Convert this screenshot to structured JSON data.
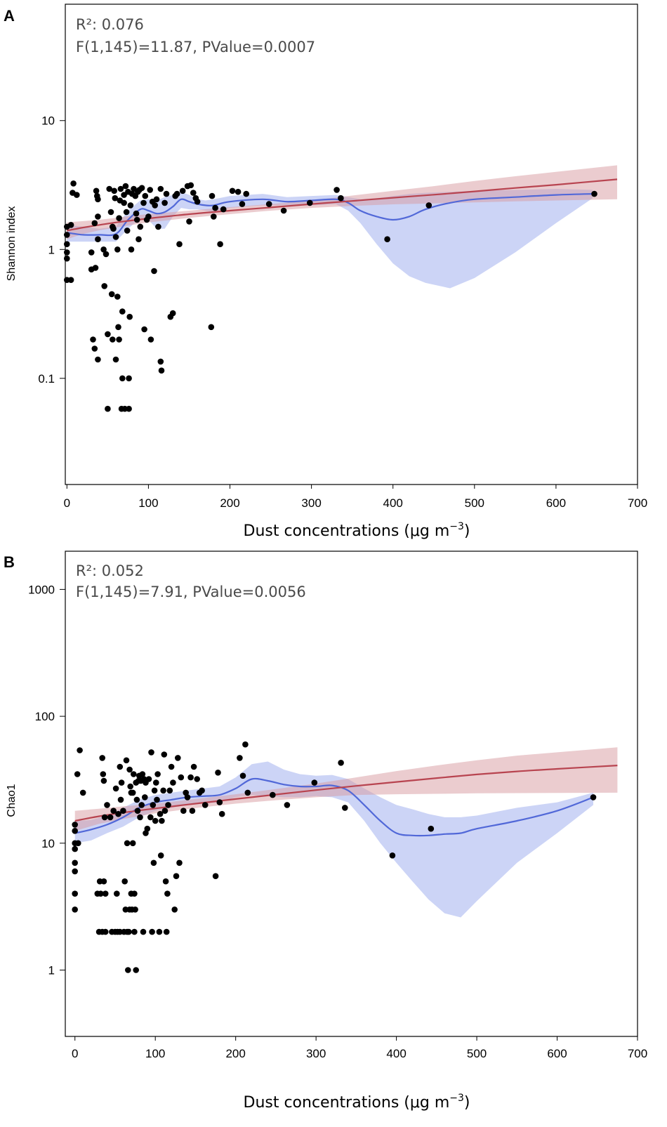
{
  "chart_data": [
    {
      "panel": "A",
      "type": "scatter",
      "ylabel": "Shannon index",
      "xlabel": "Dust concentrations (μg m",
      "xlabel_sup": "−3",
      "annotation": [
        "R²: 0.076",
        "F(1,145)=11.87, PValue=0.0007"
      ],
      "yscale": "log",
      "xlim": [
        -2,
        700
      ],
      "ylim": [
        0.015,
        80
      ],
      "xticks": [
        0,
        100,
        200,
        300,
        400,
        500,
        600,
        700
      ],
      "yticks": [
        0.1,
        1,
        10
      ],
      "ytick_labels": [
        "0.1",
        "1",
        "10"
      ],
      "points": [
        [
          0,
          1.5
        ],
        [
          0,
          1.3
        ],
        [
          0,
          1.1
        ],
        [
          0,
          0.95
        ],
        [
          0,
          0.85
        ],
        [
          0,
          0.58
        ],
        [
          5,
          1.55
        ],
        [
          5,
          0.58
        ],
        [
          7,
          2.75
        ],
        [
          8,
          3.25
        ],
        [
          12,
          2.65
        ],
        [
          30,
          0.95
        ],
        [
          30,
          0.7
        ],
        [
          32,
          0.2
        ],
        [
          34,
          1.6
        ],
        [
          34,
          0.17
        ],
        [
          35,
          0.72
        ],
        [
          36,
          2.85
        ],
        [
          37,
          2.6
        ],
        [
          38,
          2.45
        ],
        [
          38,
          1.8
        ],
        [
          38,
          1.2
        ],
        [
          38,
          0.14
        ],
        [
          45,
          1.0
        ],
        [
          46,
          0.52
        ],
        [
          48,
          0.92
        ],
        [
          50,
          0.22
        ],
        [
          50,
          0.058
        ],
        [
          52,
          2.95
        ],
        [
          54,
          1.95
        ],
        [
          55,
          0.45
        ],
        [
          56,
          1.5
        ],
        [
          56,
          0.2
        ],
        [
          57,
          1.45
        ],
        [
          58,
          2.85
        ],
        [
          59,
          2.5
        ],
        [
          60,
          1.25
        ],
        [
          60,
          0.14
        ],
        [
          62,
          1.0
        ],
        [
          62,
          0.43
        ],
        [
          63,
          0.25
        ],
        [
          64,
          0.2
        ],
        [
          64,
          1.75
        ],
        [
          65,
          2.4
        ],
        [
          66,
          2.95
        ],
        [
          67,
          0.058
        ],
        [
          68,
          0.33
        ],
        [
          68,
          0.1
        ],
        [
          70,
          2.65
        ],
        [
          70,
          2.3
        ],
        [
          71,
          0.058
        ],
        [
          72,
          3.1
        ],
        [
          73,
          1.95
        ],
        [
          74,
          1.4
        ],
        [
          75,
          2.8
        ],
        [
          76,
          0.1
        ],
        [
          76,
          0.058
        ],
        [
          77,
          0.3
        ],
        [
          78,
          2.2
        ],
        [
          79,
          1.0
        ],
        [
          80,
          2.7
        ],
        [
          82,
          2.95
        ],
        [
          84,
          2.6
        ],
        [
          85,
          1.9
        ],
        [
          86,
          1.7
        ],
        [
          87,
          2.8
        ],
        [
          88,
          1.2
        ],
        [
          89,
          2.9
        ],
        [
          90,
          1.5
        ],
        [
          92,
          3.0
        ],
        [
          94,
          2.3
        ],
        [
          95,
          0.24
        ],
        [
          96,
          2.6
        ],
        [
          98,
          1.7
        ],
        [
          100,
          1.8
        ],
        [
          102,
          2.9
        ],
        [
          103,
          0.2
        ],
        [
          105,
          2.35
        ],
        [
          107,
          0.68
        ],
        [
          108,
          2.2
        ],
        [
          110,
          2.45
        ],
        [
          112,
          1.5
        ],
        [
          115,
          2.95
        ],
        [
          115,
          0.135
        ],
        [
          116,
          0.115
        ],
        [
          120,
          2.3
        ],
        [
          122,
          2.7
        ],
        [
          127,
          0.3
        ],
        [
          130,
          0.32
        ],
        [
          133,
          2.6
        ],
        [
          135,
          2.7
        ],
        [
          138,
          1.1
        ],
        [
          142,
          2.85
        ],
        [
          148,
          3.1
        ],
        [
          150,
          1.65
        ],
        [
          152,
          3.15
        ],
        [
          155,
          2.75
        ],
        [
          158,
          2.5
        ],
        [
          160,
          2.35
        ],
        [
          177,
          0.25
        ],
        [
          178,
          2.6
        ],
        [
          180,
          1.8
        ],
        [
          182,
          2.1
        ],
        [
          188,
          1.1
        ],
        [
          192,
          2.05
        ],
        [
          203,
          2.85
        ],
        [
          210,
          2.8
        ],
        [
          215,
          2.25
        ],
        [
          220,
          2.7
        ],
        [
          248,
          2.25
        ],
        [
          266,
          2.0
        ],
        [
          298,
          2.3
        ],
        [
          331,
          2.9
        ],
        [
          336,
          2.5
        ],
        [
          393,
          1.2
        ],
        [
          444,
          2.2
        ],
        [
          647,
          2.7
        ]
      ],
      "smooth_fit": {
        "x": [
          0,
          20,
          40,
          60,
          75,
          90,
          100,
          110,
          120,
          130,
          140,
          150,
          160,
          170,
          180,
          200,
          240,
          270,
          300,
          330,
          345,
          360,
          380,
          400,
          420,
          440,
          470,
          500,
          550,
          600,
          645
        ],
        "y": [
          1.35,
          1.3,
          1.3,
          1.32,
          1.7,
          2.05,
          2.0,
          1.9,
          1.95,
          2.15,
          2.45,
          2.35,
          2.25,
          2.2,
          2.2,
          2.35,
          2.45,
          2.35,
          2.4,
          2.45,
          2.3,
          2.0,
          1.8,
          1.7,
          1.8,
          2.05,
          2.3,
          2.45,
          2.55,
          2.65,
          2.7
        ],
        "lower": [
          1.15,
          1.15,
          1.15,
          1.15,
          1.45,
          1.75,
          1.7,
          1.45,
          1.45,
          1.8,
          2.1,
          2.05,
          2.05,
          2.0,
          1.95,
          2.1,
          2.2,
          2.2,
          2.2,
          2.25,
          2.0,
          1.6,
          1.1,
          0.78,
          0.62,
          0.55,
          0.5,
          0.6,
          0.95,
          1.6,
          2.5
        ],
        "upper": [
          1.55,
          1.5,
          1.45,
          1.5,
          2.0,
          2.4,
          2.45,
          2.4,
          2.55,
          2.65,
          2.8,
          2.65,
          2.45,
          2.4,
          2.45,
          2.6,
          2.7,
          2.55,
          2.6,
          2.65,
          2.55,
          2.45,
          2.5,
          2.6,
          2.7,
          2.75,
          2.8,
          2.85,
          2.9,
          2.95,
          2.9
        ]
      },
      "linear_fit": {
        "x": [
          0,
          10,
          20,
          40,
          60,
          80,
          100,
          150,
          200,
          250,
          300,
          350,
          400,
          450,
          500,
          550,
          600,
          675
        ],
        "y": [
          1.4,
          1.44,
          1.48,
          1.55,
          1.62,
          1.68,
          1.74,
          1.88,
          2.0,
          2.12,
          2.25,
          2.38,
          2.52,
          2.66,
          2.82,
          3.0,
          3.18,
          3.5
        ],
        "lower": [
          1.2,
          1.26,
          1.32,
          1.41,
          1.48,
          1.55,
          1.62,
          1.76,
          1.88,
          2.0,
          2.1,
          2.18,
          2.24,
          2.28,
          2.32,
          2.36,
          2.4,
          2.45
        ],
        "upper": [
          1.62,
          1.64,
          1.66,
          1.7,
          1.76,
          1.83,
          1.88,
          2.0,
          2.13,
          2.25,
          2.4,
          2.62,
          2.85,
          3.1,
          3.4,
          3.7,
          4.0,
          4.5
        ]
      },
      "colors": {
        "points": "#000000",
        "smooth": "#5168d8",
        "smooth_band": "#aab8f0",
        "linear": "#b84450",
        "linear_band": "#d89a9f"
      }
    },
    {
      "panel": "B",
      "type": "scatter",
      "ylabel": "Chao1",
      "xlabel": "Dust concentrations (μg m",
      "xlabel_sup": "−3",
      "annotation": [
        "R²: 0.052",
        "F(1,145)=7.91, PValue=0.0056"
      ],
      "yscale": "log",
      "xlim": [
        -12,
        700
      ],
      "ylim": [
        0.3,
        2000
      ],
      "xticks": [
        0,
        100,
        200,
        300,
        400,
        500,
        600,
        700
      ],
      "yticks": [
        1,
        10,
        100,
        1000
      ],
      "ytick_labels": [
        "1",
        "10",
        "100",
        "1000"
      ],
      "points": [
        [
          0,
          14
        ],
        [
          0,
          12.5
        ],
        [
          0,
          10
        ],
        [
          0,
          9
        ],
        [
          0,
          7
        ],
        [
          0,
          6
        ],
        [
          0,
          4
        ],
        [
          0,
          3
        ],
        [
          3,
          35
        ],
        [
          4,
          10
        ],
        [
          6,
          54
        ],
        [
          10,
          25
        ],
        [
          28,
          4
        ],
        [
          30,
          2
        ],
        [
          31,
          5
        ],
        [
          32,
          4
        ],
        [
          34,
          2
        ],
        [
          34,
          47
        ],
        [
          35,
          35
        ],
        [
          36,
          31
        ],
        [
          36,
          5
        ],
        [
          37,
          16
        ],
        [
          38,
          4
        ],
        [
          38,
          2
        ],
        [
          40,
          20
        ],
        [
          44,
          16
        ],
        [
          46,
          2
        ],
        [
          48,
          18
        ],
        [
          50,
          2
        ],
        [
          51,
          27
        ],
        [
          52,
          4
        ],
        [
          53,
          2
        ],
        [
          54,
          17
        ],
        [
          56,
          40
        ],
        [
          56,
          2
        ],
        [
          57,
          22
        ],
        [
          58,
          30
        ],
        [
          60,
          18
        ],
        [
          61,
          2
        ],
        [
          62,
          5
        ],
        [
          63,
          3
        ],
        [
          64,
          45
        ],
        [
          65,
          10
        ],
        [
          65,
          2
        ],
        [
          66,
          1
        ],
        [
          67,
          2
        ],
        [
          68,
          3
        ],
        [
          68,
          38
        ],
        [
          69,
          28
        ],
        [
          70,
          4
        ],
        [
          70,
          25
        ],
        [
          71,
          3
        ],
        [
          72,
          25
        ],
        [
          72,
          10
        ],
        [
          73,
          35
        ],
        [
          74,
          4
        ],
        [
          74,
          2
        ],
        [
          75,
          3
        ],
        [
          76,
          1
        ],
        [
          76,
          30
        ],
        [
          77,
          22
        ],
        [
          78,
          18
        ],
        [
          79,
          31
        ],
        [
          80,
          34
        ],
        [
          81,
          16
        ],
        [
          82,
          31
        ],
        [
          83,
          20
        ],
        [
          84,
          35
        ],
        [
          85,
          2
        ],
        [
          86,
          32
        ],
        [
          87,
          23
        ],
        [
          88,
          12
        ],
        [
          88,
          30
        ],
        [
          90,
          13
        ],
        [
          92,
          32
        ],
        [
          94,
          16
        ],
        [
          95,
          52
        ],
        [
          96,
          2
        ],
        [
          97,
          20
        ],
        [
          98,
          7
        ],
        [
          99,
          26
        ],
        [
          100,
          15
        ],
        [
          101,
          30
        ],
        [
          102,
          22
        ],
        [
          103,
          35
        ],
        [
          105,
          2
        ],
        [
          106,
          17
        ],
        [
          107,
          8
        ],
        [
          108,
          15
        ],
        [
          110,
          26
        ],
        [
          111,
          50
        ],
        [
          112,
          18
        ],
        [
          113,
          5
        ],
        [
          114,
          2
        ],
        [
          115,
          4
        ],
        [
          116,
          20
        ],
        [
          118,
          26
        ],
        [
          120,
          40
        ],
        [
          122,
          30
        ],
        [
          124,
          3
        ],
        [
          126,
          5.5
        ],
        [
          128,
          47
        ],
        [
          130,
          7
        ],
        [
          132,
          33
        ],
        [
          135,
          18
        ],
        [
          138,
          25
        ],
        [
          140,
          23
        ],
        [
          144,
          33
        ],
        [
          146,
          18
        ],
        [
          148,
          40
        ],
        [
          152,
          32
        ],
        [
          155,
          25
        ],
        [
          158,
          26
        ],
        [
          162,
          20
        ],
        [
          175,
          5.5
        ],
        [
          178,
          36
        ],
        [
          180,
          21
        ],
        [
          183,
          17
        ],
        [
          205,
          47
        ],
        [
          209,
          34
        ],
        [
          212,
          60
        ],
        [
          215,
          25
        ],
        [
          246,
          24
        ],
        [
          264,
          20
        ],
        [
          298,
          30
        ],
        [
          331,
          43
        ],
        [
          336,
          19
        ],
        [
          395,
          8
        ],
        [
          443,
          13
        ],
        [
          645,
          23
        ]
      ],
      "smooth_fit": {
        "x": [
          0,
          20,
          40,
          60,
          80,
          100,
          120,
          140,
          160,
          180,
          200,
          220,
          240,
          260,
          280,
          300,
          320,
          340,
          360,
          380,
          400,
          420,
          440,
          460,
          480,
          500,
          550,
          600,
          645
        ],
        "y": [
          12,
          12.8,
          14,
          16,
          19,
          21,
          22,
          23,
          23.5,
          24,
          27,
          32,
          31,
          29,
          28,
          28,
          28.5,
          26,
          20,
          15,
          12,
          11.5,
          11.5,
          11.8,
          12,
          13,
          15,
          18,
          23
        ],
        "lower": [
          10,
          10.5,
          12,
          13.5,
          16,
          18,
          19,
          20,
          20.5,
          21,
          23,
          24,
          23.5,
          23,
          23,
          23.5,
          23,
          21,
          15,
          10,
          7,
          5,
          3.6,
          2.8,
          2.6,
          3.5,
          7,
          12,
          20
        ],
        "upper": [
          15,
          15.2,
          16.5,
          19,
          22,
          24,
          25,
          26,
          27,
          28,
          33,
          42,
          44,
          38,
          35,
          34,
          34.5,
          32,
          27,
          23,
          20,
          18.5,
          17,
          16,
          16,
          16.5,
          19,
          21,
          25
        ]
      },
      "linear_fit": {
        "x": [
          0,
          30,
          60,
          100,
          150,
          200,
          250,
          300,
          350,
          400,
          450,
          500,
          550,
          600,
          675
        ],
        "y": [
          15,
          16.3,
          17.4,
          18.8,
          20.5,
          22.3,
          24.2,
          26.2,
          28.3,
          30.4,
          32.6,
          34.8,
          36.8,
          38.5,
          41
        ],
        "lower": [
          12.5,
          14.2,
          15.5,
          17.2,
          18.9,
          20.5,
          21.8,
          23,
          24,
          24.3,
          24.5,
          24.7,
          24.8,
          24.9,
          25
        ],
        "upper": [
          18,
          18.7,
          19.5,
          20.5,
          22.3,
          24.3,
          26.7,
          29.5,
          33,
          37,
          41,
          45,
          49,
          52,
          57
        ]
      },
      "colors": {
        "points": "#000000",
        "smooth": "#5168d8",
        "smooth_band": "#aab8f0",
        "linear": "#b84450",
        "linear_band": "#d89a9f"
      }
    }
  ]
}
